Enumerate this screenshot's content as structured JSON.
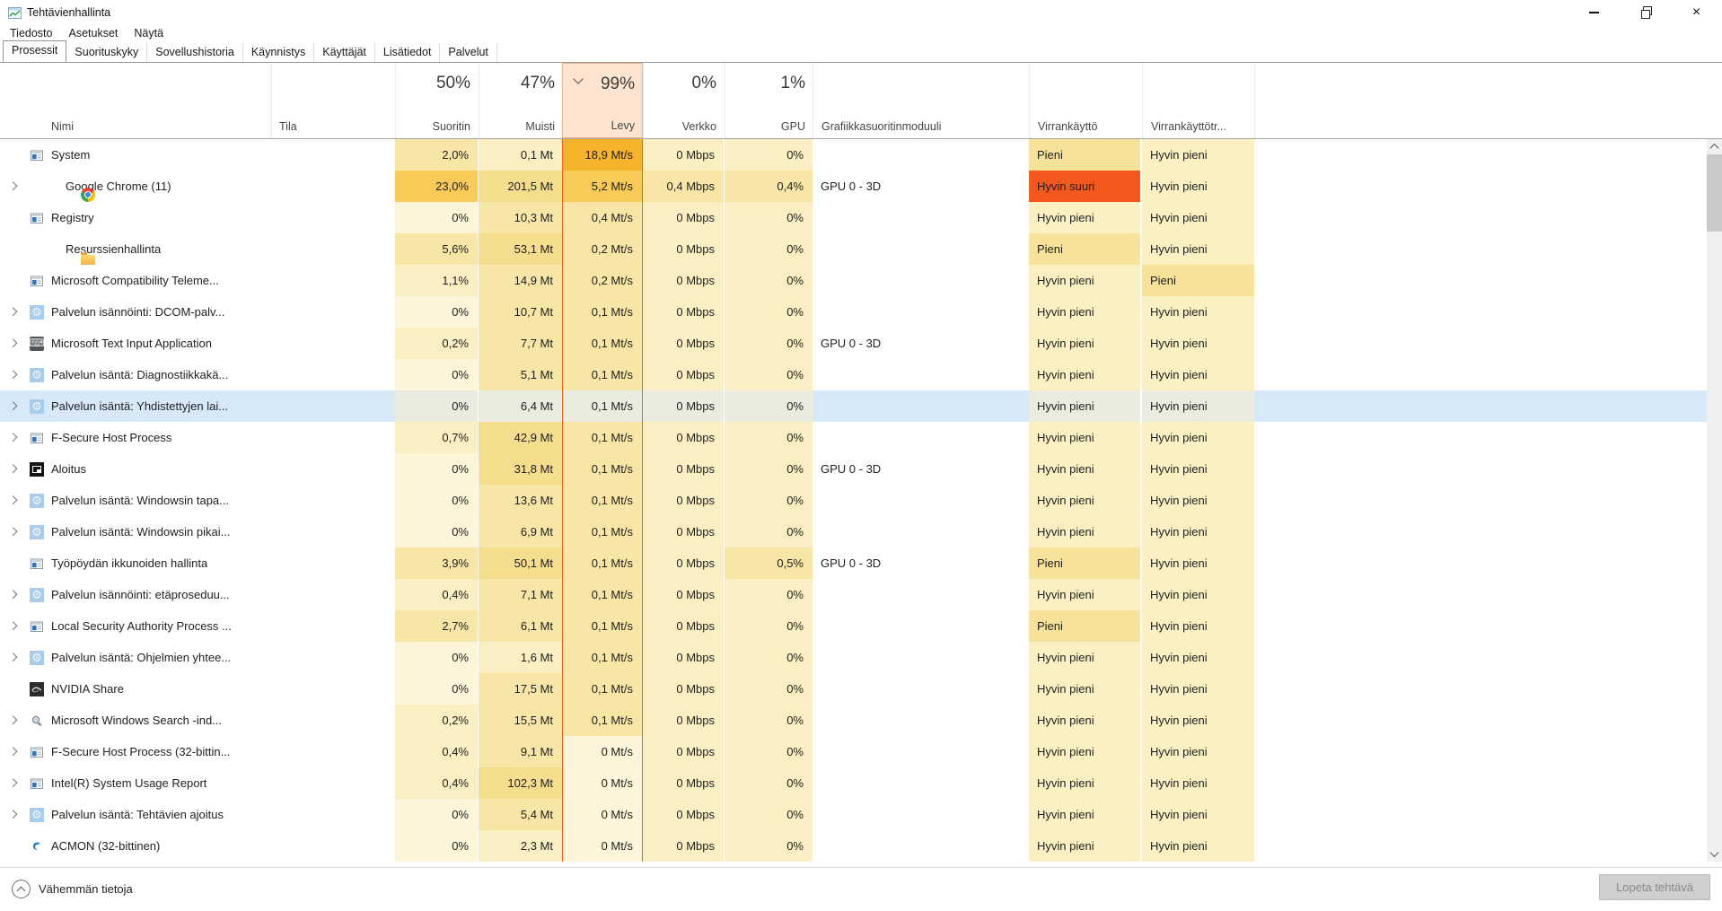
{
  "window": {
    "title": "Tehtävienhallinta",
    "controls": {
      "minimize": "minimize",
      "restore": "restore",
      "close": "close"
    }
  },
  "menu": {
    "items": [
      "Tiedosto",
      "Asetukset",
      "Näytä"
    ]
  },
  "tabs": {
    "active": "Prosessit",
    "items": [
      "Prosessit",
      "Suorituskyky",
      "Sovellushistoria",
      "Käynnistys",
      "Käyttäjät",
      "Lisätiedot",
      "Palvelut"
    ]
  },
  "table": {
    "columns": [
      {
        "id": "name",
        "label": "Nimi"
      },
      {
        "id": "status",
        "label": "Tila"
      },
      {
        "id": "cpu",
        "label": "Suoritin",
        "value": "50%"
      },
      {
        "id": "memory",
        "label": "Muisti",
        "value": "47%"
      },
      {
        "id": "disk",
        "label": "Levy",
        "value": "99%",
        "sorted": "descending"
      },
      {
        "id": "network",
        "label": "Verkko",
        "value": "0%"
      },
      {
        "id": "gpu",
        "label": "GPU",
        "value": "1%"
      },
      {
        "id": "gpu_engine",
        "label": "Grafiikkasuoritinmoduuli"
      },
      {
        "id": "power",
        "label": "Virrankäyttö"
      },
      {
        "id": "power_trend",
        "label": "Virrankäyttötr..."
      }
    ],
    "rows": [
      {
        "name": "System",
        "icon": "win",
        "expandable": false,
        "selected": false,
        "status": "",
        "cpu": "2,0%",
        "mem": "0,1 Mt",
        "disk": "18,9 Mt/s",
        "net": "0 Mbps",
        "gpu": "0%",
        "engine": "",
        "power": "Pieni",
        "trend": "Hyvin pieni",
        "heat": [
          2,
          1,
          5,
          1,
          1
        ],
        "power_level": "low",
        "trend_level": "vlow"
      },
      {
        "name": "Google Chrome (11)",
        "icon": "chrome",
        "expandable": true,
        "selected": false,
        "status": "",
        "cpu": "23,0%",
        "mem": "201,5 Mt",
        "disk": "5,2 Mt/s",
        "net": "0,4 Mbps",
        "gpu": "0,4%",
        "engine": "GPU 0 - 3D",
        "power": "Hyvin suuri",
        "trend": "Hyvin pieni",
        "heat": [
          4,
          3,
          4,
          2,
          2
        ],
        "power_level": "vhigh",
        "trend_level": "vlow"
      },
      {
        "name": "Registry",
        "icon": "win",
        "expandable": false,
        "selected": false,
        "status": "",
        "cpu": "0%",
        "mem": "10,3 Mt",
        "disk": "0,4 Mt/s",
        "net": "0 Mbps",
        "gpu": "0%",
        "engine": "",
        "power": "Hyvin pieni",
        "trend": "Hyvin pieni",
        "heat": [
          0,
          2,
          2,
          1,
          1
        ],
        "power_level": "vlow",
        "trend_level": "vlow"
      },
      {
        "name": "Resurssienhallinta",
        "icon": "folder",
        "expandable": false,
        "selected": false,
        "status": "",
        "cpu": "5,6%",
        "mem": "53,1 Mt",
        "disk": "0,2 Mt/s",
        "net": "0 Mbps",
        "gpu": "0%",
        "engine": "",
        "power": "Pieni",
        "trend": "Hyvin pieni",
        "heat": [
          2,
          3,
          2,
          1,
          1
        ],
        "power_level": "low",
        "trend_level": "vlow"
      },
      {
        "name": "Microsoft Compatibility Teleme...",
        "icon": "win",
        "expandable": false,
        "selected": false,
        "status": "",
        "cpu": "1,1%",
        "mem": "14,9 Mt",
        "disk": "0,2 Mt/s",
        "net": "0 Mbps",
        "gpu": "0%",
        "engine": "",
        "power": "Hyvin pieni",
        "trend": "Pieni",
        "heat": [
          1,
          2,
          2,
          1,
          1
        ],
        "power_level": "vlow",
        "trend_level": "low"
      },
      {
        "name": "Palvelun isännöinti: DCOM-palv...",
        "icon": "gear",
        "expandable": true,
        "selected": false,
        "status": "",
        "cpu": "0%",
        "mem": "10,7 Mt",
        "disk": "0,1 Mt/s",
        "net": "0 Mbps",
        "gpu": "0%",
        "engine": "",
        "power": "Hyvin pieni",
        "trend": "Hyvin pieni",
        "heat": [
          0,
          2,
          2,
          1,
          1
        ],
        "power_level": "vlow",
        "trend_level": "vlow"
      },
      {
        "name": "Microsoft Text Input Application",
        "icon": "keyboard",
        "expandable": true,
        "selected": false,
        "status": "",
        "cpu": "0,2%",
        "mem": "7,7 Mt",
        "disk": "0,1 Mt/s",
        "net": "0 Mbps",
        "gpu": "0%",
        "engine": "GPU 0 - 3D",
        "power": "Hyvin pieni",
        "trend": "Hyvin pieni",
        "heat": [
          1,
          2,
          2,
          1,
          1
        ],
        "power_level": "vlow",
        "trend_level": "vlow"
      },
      {
        "name": "Palvelun isäntä: Diagnostiikkakä...",
        "icon": "gear",
        "expandable": true,
        "selected": false,
        "status": "",
        "cpu": "0%",
        "mem": "5,1 Mt",
        "disk": "0,1 Mt/s",
        "net": "0 Mbps",
        "gpu": "0%",
        "engine": "",
        "power": "Hyvin pieni",
        "trend": "Hyvin pieni",
        "heat": [
          0,
          2,
          2,
          1,
          1
        ],
        "power_level": "vlow",
        "trend_level": "vlow"
      },
      {
        "name": "Palvelun isäntä: Yhdistettyjen lai...",
        "icon": "gear",
        "expandable": true,
        "selected": true,
        "status": "",
        "cpu": "0%",
        "mem": "6,4 Mt",
        "disk": "0,1 Mt/s",
        "net": "0 Mbps",
        "gpu": "0%",
        "engine": "",
        "power": "Hyvin pieni",
        "trend": "Hyvin pieni",
        "heat": [
          0,
          2,
          2,
          1,
          1
        ],
        "power_level": "vlow",
        "trend_level": "vlow"
      },
      {
        "name": "F-Secure Host Process",
        "icon": "win",
        "expandable": true,
        "selected": false,
        "status": "",
        "cpu": "0,7%",
        "mem": "42,9 Mt",
        "disk": "0,1 Mt/s",
        "net": "0 Mbps",
        "gpu": "0%",
        "engine": "",
        "power": "Hyvin pieni",
        "trend": "Hyvin pieni",
        "heat": [
          1,
          3,
          2,
          1,
          1
        ],
        "power_level": "vlow",
        "trend_level": "vlow"
      },
      {
        "name": "Aloitus",
        "icon": "darkwin",
        "expandable": true,
        "selected": false,
        "status": "",
        "cpu": "0%",
        "mem": "31,8 Mt",
        "disk": "0,1 Mt/s",
        "net": "0 Mbps",
        "gpu": "0%",
        "engine": "GPU 0 - 3D",
        "power": "Hyvin pieni",
        "trend": "Hyvin pieni",
        "heat": [
          0,
          3,
          2,
          1,
          1
        ],
        "power_level": "vlow",
        "trend_level": "vlow"
      },
      {
        "name": "Palvelun isäntä: Windowsin tapa...",
        "icon": "gear",
        "expandable": true,
        "selected": false,
        "status": "",
        "cpu": "0%",
        "mem": "13,6 Mt",
        "disk": "0,1 Mt/s",
        "net": "0 Mbps",
        "gpu": "0%",
        "engine": "",
        "power": "Hyvin pieni",
        "trend": "Hyvin pieni",
        "heat": [
          0,
          2,
          2,
          1,
          1
        ],
        "power_level": "vlow",
        "trend_level": "vlow"
      },
      {
        "name": "Palvelun isäntä: Windowsin pikai...",
        "icon": "gear",
        "expandable": true,
        "selected": false,
        "status": "",
        "cpu": "0%",
        "mem": "6,9 Mt",
        "disk": "0,1 Mt/s",
        "net": "0 Mbps",
        "gpu": "0%",
        "engine": "",
        "power": "Hyvin pieni",
        "trend": "Hyvin pieni",
        "heat": [
          0,
          2,
          2,
          1,
          1
        ],
        "power_level": "vlow",
        "trend_level": "vlow"
      },
      {
        "name": "Työpöydän ikkunoiden hallinta",
        "icon": "win",
        "expandable": false,
        "selected": false,
        "status": "",
        "cpu": "3,9%",
        "mem": "50,1 Mt",
        "disk": "0,1 Mt/s",
        "net": "0 Mbps",
        "gpu": "0,5%",
        "engine": "GPU 0 - 3D",
        "power": "Pieni",
        "trend": "Hyvin pieni",
        "heat": [
          2,
          3,
          2,
          1,
          2
        ],
        "power_level": "low",
        "trend_level": "vlow"
      },
      {
        "name": "Palvelun isännöinti: etäproseduu...",
        "icon": "gear",
        "expandable": true,
        "selected": false,
        "status": "",
        "cpu": "0,4%",
        "mem": "7,1 Mt",
        "disk": "0,1 Mt/s",
        "net": "0 Mbps",
        "gpu": "0%",
        "engine": "",
        "power": "Hyvin pieni",
        "trend": "Hyvin pieni",
        "heat": [
          1,
          2,
          2,
          1,
          1
        ],
        "power_level": "vlow",
        "trend_level": "vlow"
      },
      {
        "name": "Local Security Authority Process ...",
        "icon": "win",
        "expandable": true,
        "selected": false,
        "status": "",
        "cpu": "2,7%",
        "mem": "6,1 Mt",
        "disk": "0,1 Mt/s",
        "net": "0 Mbps",
        "gpu": "0%",
        "engine": "",
        "power": "Pieni",
        "trend": "Hyvin pieni",
        "heat": [
          2,
          2,
          2,
          1,
          1
        ],
        "power_level": "low",
        "trend_level": "vlow"
      },
      {
        "name": "Palvelun isäntä: Ohjelmien yhtee...",
        "icon": "gear",
        "expandable": true,
        "selected": false,
        "status": "",
        "cpu": "0%",
        "mem": "1,6 Mt",
        "disk": "0,1 Mt/s",
        "net": "0 Mbps",
        "gpu": "0%",
        "engine": "",
        "power": "Hyvin pieni",
        "trend": "Hyvin pieni",
        "heat": [
          0,
          1,
          2,
          1,
          1
        ],
        "power_level": "vlow",
        "trend_level": "vlow"
      },
      {
        "name": "NVIDIA Share",
        "icon": "nvidia",
        "expandable": false,
        "selected": false,
        "status": "",
        "cpu": "0%",
        "mem": "17,5 Mt",
        "disk": "0,1 Mt/s",
        "net": "0 Mbps",
        "gpu": "0%",
        "engine": "",
        "power": "Hyvin pieni",
        "trend": "Hyvin pieni",
        "heat": [
          0,
          2,
          2,
          1,
          1
        ],
        "power_level": "vlow",
        "trend_level": "vlow"
      },
      {
        "name": "Microsoft Windows Search -ind...",
        "icon": "search",
        "expandable": true,
        "selected": false,
        "status": "",
        "cpu": "0,2%",
        "mem": "15,5 Mt",
        "disk": "0,1 Mt/s",
        "net": "0 Mbps",
        "gpu": "0%",
        "engine": "",
        "power": "Hyvin pieni",
        "trend": "Hyvin pieni",
        "heat": [
          1,
          2,
          2,
          1,
          1
        ],
        "power_level": "vlow",
        "trend_level": "vlow"
      },
      {
        "name": "F-Secure Host Process (32-bittin...",
        "icon": "win",
        "expandable": true,
        "selected": false,
        "status": "",
        "cpu": "0,4%",
        "mem": "9,1 Mt",
        "disk": "0 Mt/s",
        "net": "0 Mbps",
        "gpu": "0%",
        "engine": "",
        "power": "Hyvin pieni",
        "trend": "Hyvin pieni",
        "heat": [
          1,
          2,
          0,
          1,
          1
        ],
        "power_level": "vlow",
        "trend_level": "vlow"
      },
      {
        "name": "Intel(R) System Usage Report",
        "icon": "win",
        "expandable": true,
        "selected": false,
        "status": "",
        "cpu": "0,4%",
        "mem": "102,3 Mt",
        "disk": "0 Mt/s",
        "net": "0 Mbps",
        "gpu": "0%",
        "engine": "",
        "power": "Hyvin pieni",
        "trend": "Hyvin pieni",
        "heat": [
          1,
          3,
          0,
          1,
          1
        ],
        "power_level": "vlow",
        "trend_level": "vlow"
      },
      {
        "name": "Palvelun isäntä: Tehtävien ajoitus",
        "icon": "gear",
        "expandable": true,
        "selected": false,
        "status": "",
        "cpu": "0%",
        "mem": "5,4 Mt",
        "disk": "0 Mt/s",
        "net": "0 Mbps",
        "gpu": "0%",
        "engine": "",
        "power": "Hyvin pieni",
        "trend": "Hyvin pieni",
        "heat": [
          0,
          2,
          0,
          1,
          1
        ],
        "power_level": "vlow",
        "trend_level": "vlow"
      },
      {
        "name": "ACMON (32-bittinen)",
        "icon": "acmon",
        "expandable": false,
        "selected": false,
        "status": "",
        "cpu": "0%",
        "mem": "2,3 Mt",
        "disk": "0 Mt/s",
        "net": "0 Mbps",
        "gpu": "0%",
        "engine": "",
        "power": "Hyvin pieni",
        "trend": "Hyvin pieni",
        "heat": [
          0,
          1,
          0,
          1,
          1
        ],
        "power_level": "vlow",
        "trend_level": "vlow"
      }
    ]
  },
  "footer": {
    "less_details": "Vähemmän tietoja",
    "end_task": "Lopeta tehtävä"
  },
  "colors": {
    "sorted_column_border": "#e5641e",
    "sorted_header_bg": "#fce4d0",
    "selected_row_bg": "#d7e9f8",
    "heat_levels": [
      "#fdf5d9",
      "#faefc2",
      "#f8e6a7",
      "#f5dd8e",
      "#f8ca58",
      "#f6b42c"
    ],
    "power_very_low": "#faf0c2",
    "power_low": "#f6e299",
    "power_very_high": "#f4581c",
    "end_task_disabled_bg": "#cfcfcf"
  }
}
